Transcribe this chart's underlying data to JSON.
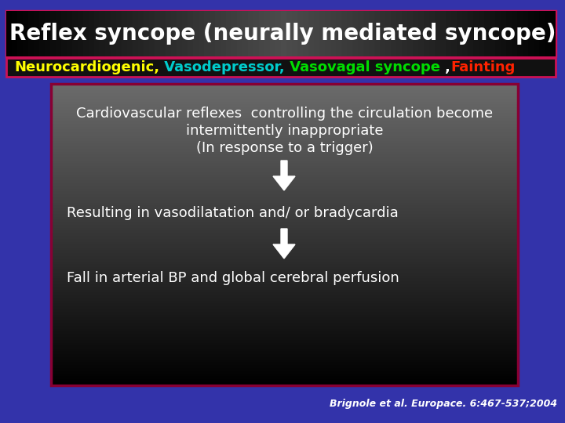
{
  "title": "Reflex syncope (neurally mediated syncope)",
  "subtitle_parts": [
    {
      "text": "Neurocardiogenic,",
      "color": "#FFFF00"
    },
    {
      "text": " Vasodepressor,",
      "color": "#00CCCC"
    },
    {
      "text": " Vasovagal syncope ",
      "color": "#00DD00"
    },
    {
      "text": ",",
      "color": "#FFFFFF"
    },
    {
      "text": "Fainting",
      "color": "#FF2200"
    }
  ],
  "box_text1_line1": "Cardiovascular reflexes  controlling the circulation become",
  "box_text1_line2": "intermittently inappropriate",
  "box_text1_line3": "(In response to a trigger)",
  "box_text2": "Resulting in vasodilatation and/ or bradycardia",
  "box_text3": "Fall in arterial BP and global cerebral perfusion",
  "footnote": "Brignole et al. Europace. 6:467-537;2004",
  "bg_color": "#3333AA",
  "title_fontsize": 20,
  "subtitle_fontsize": 13,
  "body_fontsize": 13,
  "footnote_fontsize": 9
}
